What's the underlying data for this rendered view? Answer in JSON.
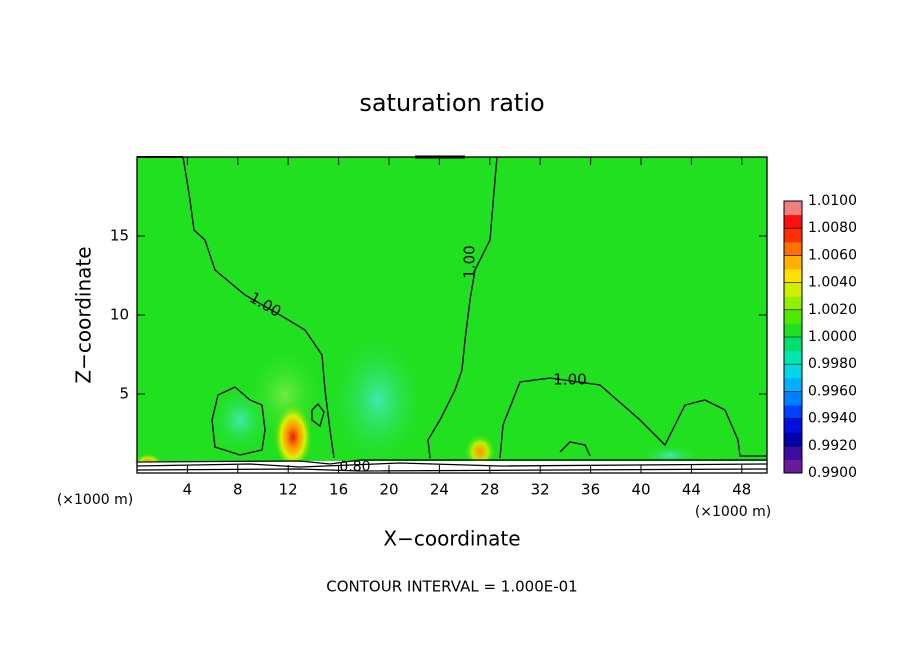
{
  "chart_data": {
    "type": "contour",
    "title": "saturation ratio",
    "xlabel": "X−coordinate",
    "ylabel": "Z−coordinate",
    "x_unit_left": "(×1000 m)",
    "x_unit_right": "(×1000 m)",
    "footnote": "CONTOUR INTERVAL = 1.000E-01",
    "xlim": [
      0,
      50
    ],
    "xticks": [
      4,
      8,
      12,
      16,
      20,
      24,
      28,
      32,
      36,
      40,
      44,
      48
    ],
    "ylim": [
      0,
      20
    ],
    "yticks": [
      5,
      10,
      15
    ],
    "contour_labels": [
      "1.00",
      "1.00",
      "1.00",
      "0.80"
    ],
    "colorbar": {
      "lim": [
        0.99,
        1.01
      ],
      "ticks": [
        {
          "value": 1.01,
          "label": "1.0100"
        },
        {
          "value": 1.008,
          "label": "1.0080"
        },
        {
          "value": 1.006,
          "label": "1.0060"
        },
        {
          "value": 1.004,
          "label": "1.0040"
        },
        {
          "value": 1.002,
          "label": "1.0020"
        },
        {
          "value": 1.0,
          "label": "1.0000"
        },
        {
          "value": 0.998,
          "label": "0.9980"
        },
        {
          "value": 0.996,
          "label": "0.9960"
        },
        {
          "value": 0.994,
          "label": "0.9940"
        },
        {
          "value": 0.992,
          "label": "0.9920"
        },
        {
          "value": 0.99,
          "label": "0.9900"
        }
      ],
      "colors": [
        "#6a1b9a",
        "#3a0ca0",
        "#0000b0",
        "#0010e0",
        "#0040ff",
        "#0080ff",
        "#00b0ff",
        "#00d8e8",
        "#00e8b0",
        "#00e070",
        "#20e020",
        "#50e800",
        "#90f000",
        "#d0f000",
        "#ffe000",
        "#ffb000",
        "#ff7000",
        "#ff3000",
        "#ff1010",
        "#f08080"
      ]
    }
  }
}
